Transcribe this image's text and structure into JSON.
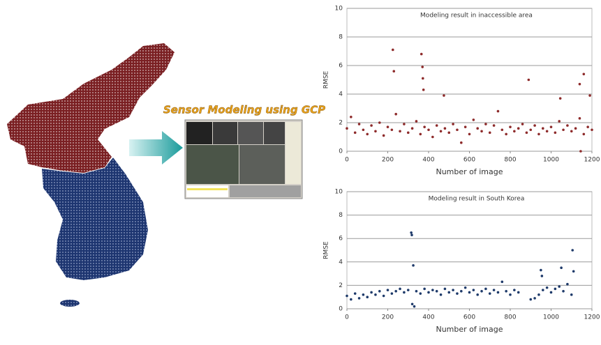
{
  "screenshot_title": "Sensor Modeling using GCP",
  "chart_data": [
    {
      "type": "scatter",
      "title": "Modeling result in inaccessible area",
      "xlabel": "Number of image",
      "ylabel": "RMSE",
      "color": "#8e2b2b",
      "xlim": [
        0,
        1200
      ],
      "ylim": [
        0,
        10
      ],
      "xticks": [
        0,
        200,
        400,
        600,
        800,
        1000,
        1200
      ],
      "yticks": [
        0,
        2,
        4,
        6,
        8,
        10
      ],
      "grid": true,
      "x": [
        0,
        20,
        40,
        60,
        80,
        100,
        120,
        140,
        160,
        180,
        200,
        220,
        240,
        260,
        280,
        300,
        320,
        340,
        360,
        380,
        400,
        420,
        440,
        460,
        480,
        500,
        520,
        540,
        560,
        580,
        600,
        620,
        640,
        660,
        680,
        700,
        720,
        740,
        760,
        780,
        800,
        820,
        840,
        860,
        880,
        900,
        920,
        940,
        960,
        980,
        1000,
        1020,
        1040,
        1060,
        1080,
        1100,
        1120,
        1140,
        1160,
        1180,
        1200,
        225,
        230,
        365,
        370,
        372,
        375,
        475,
        890,
        1045,
        1140,
        1145,
        1160,
        1190
      ],
      "y": [
        1.6,
        2.4,
        1.3,
        1.9,
        1.5,
        1.2,
        1.8,
        1.4,
        2.0,
        1.1,
        1.7,
        1.5,
        2.6,
        1.4,
        1.9,
        1.3,
        1.6,
        2.1,
        1.2,
        1.7,
        1.5,
        1.0,
        1.8,
        1.4,
        1.6,
        1.3,
        1.9,
        1.5,
        0.6,
        1.7,
        1.2,
        2.2,
        1.6,
        1.4,
        1.9,
        1.3,
        1.8,
        2.8,
        1.5,
        1.2,
        1.7,
        1.4,
        1.6,
        1.9,
        1.3,
        1.5,
        1.8,
        1.2,
        1.6,
        1.4,
        1.7,
        1.3,
        2.1,
        1.5,
        1.8,
        1.4,
        1.6,
        2.3,
        1.2,
        1.7,
        1.5,
        7.1,
        5.6,
        6.8,
        5.9,
        5.1,
        4.3,
        3.9,
        5.0,
        3.7,
        4.7,
        0.0,
        5.4,
        3.9
      ]
    },
    {
      "type": "scatter",
      "title": "Modeling result in South Korea",
      "xlabel": "Number of image",
      "ylabel": "RMSE",
      "color": "#1e3a6a",
      "xlim": [
        0,
        1200
      ],
      "ylim": [
        0,
        10
      ],
      "xticks": [
        0,
        200,
        400,
        600,
        800,
        1000,
        1200
      ],
      "yticks": [
        0,
        2,
        4,
        6,
        8,
        10
      ],
      "grid": true,
      "x": [
        0,
        20,
        40,
        60,
        80,
        100,
        120,
        140,
        160,
        180,
        200,
        220,
        240,
        260,
        280,
        300,
        320,
        340,
        360,
        380,
        400,
        420,
        440,
        460,
        480,
        500,
        520,
        540,
        560,
        580,
        600,
        620,
        640,
        660,
        680,
        700,
        720,
        740,
        760,
        780,
        800,
        820,
        840,
        900,
        920,
        940,
        960,
        980,
        1000,
        1020,
        1040,
        1060,
        1080,
        1100,
        315,
        318,
        325,
        330,
        950,
        955,
        1050,
        1105,
        1110
      ],
      "y": [
        1.1,
        0.8,
        1.3,
        0.9,
        1.2,
        1.0,
        1.4,
        1.2,
        1.5,
        1.1,
        1.6,
        1.3,
        1.5,
        1.7,
        1.4,
        1.6,
        0.4,
        1.5,
        1.3,
        1.7,
        1.4,
        1.6,
        1.5,
        1.2,
        1.7,
        1.4,
        1.6,
        1.3,
        1.5,
        1.8,
        1.4,
        1.6,
        1.2,
        1.5,
        1.7,
        1.3,
        1.6,
        1.4,
        2.3,
        1.5,
        1.2,
        1.6,
        1.4,
        0.8,
        0.9,
        1.2,
        1.6,
        1.8,
        1.4,
        1.7,
        1.9,
        1.5,
        2.1,
        1.2,
        6.5,
        6.3,
        3.7,
        0.2,
        3.3,
        2.8,
        3.5,
        5.0,
        3.2
      ]
    }
  ]
}
